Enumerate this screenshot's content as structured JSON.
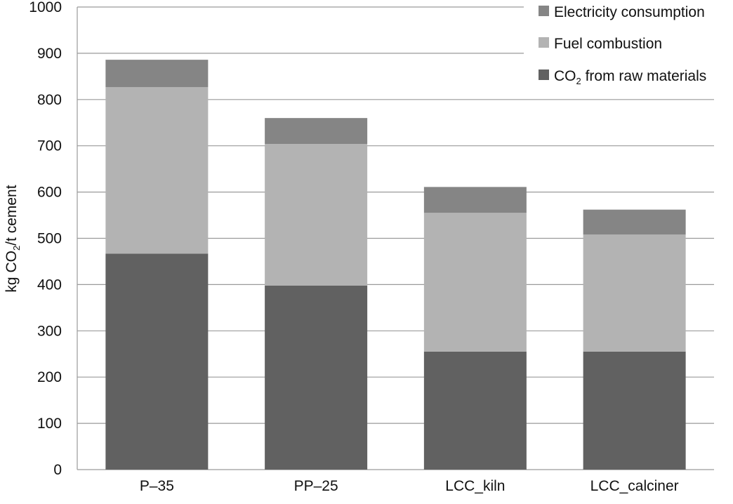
{
  "chart_data": {
    "type": "bar",
    "stacked": true,
    "ylabel_parts": [
      "kg CO",
      "2",
      "/t cement"
    ],
    "categories": [
      "P–35",
      "PP–25",
      "LCC_kiln",
      "LCC_calciner"
    ],
    "ylim": [
      0,
      1000
    ],
    "yticks": [
      "0",
      "100",
      "200",
      "300",
      "400",
      "500",
      "600",
      "700",
      "800",
      "900",
      "1000"
    ],
    "ytick_values": [
      0,
      100,
      200,
      300,
      400,
      500,
      600,
      700,
      800,
      900,
      1000
    ],
    "grid": "horizontal",
    "legend_position": "top-right",
    "series": [
      {
        "name_parts": [
          "CO",
          "2",
          " from raw materials"
        ],
        "color": "#616161",
        "values": [
          467,
          398,
          255,
          255
        ]
      },
      {
        "name_parts": [
          "Fuel combustion"
        ],
        "color": "#b3b3b3",
        "values": [
          360,
          306,
          300,
          253
        ]
      },
      {
        "name_parts": [
          "Electricity consumption"
        ],
        "color": "#858585",
        "values": [
          59,
          56,
          56,
          54
        ]
      }
    ],
    "legend_order": [
      2,
      1,
      0
    ]
  }
}
